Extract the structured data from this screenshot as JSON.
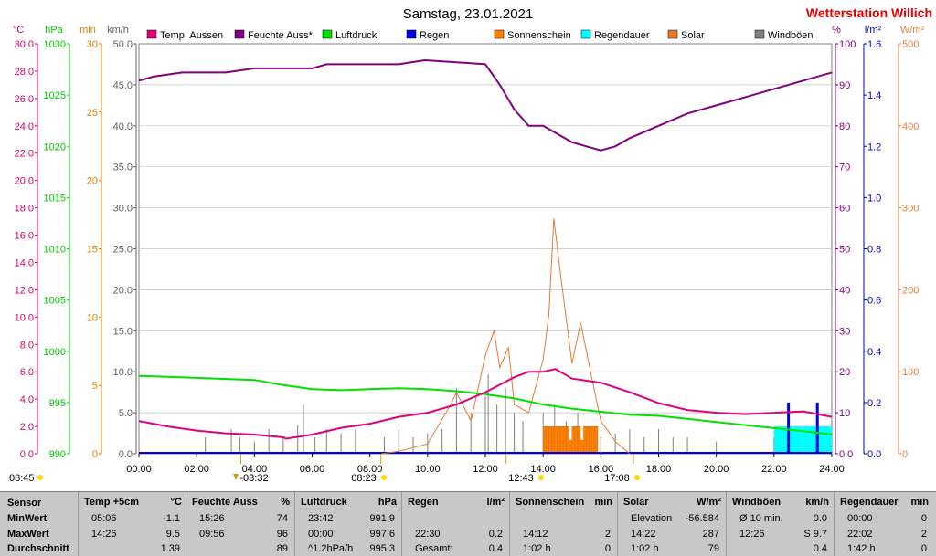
{
  "title": "Samstag, 23.01.2021",
  "station": "Wetterstation Willich",
  "axes_left": [
    {
      "unit": "°C",
      "color": "#d6006e",
      "ticks": [
        "30.0",
        "28.0",
        "26.0",
        "24.0",
        "22.0",
        "20.0",
        "18.0",
        "16.0",
        "14.0",
        "12.0",
        "10.0",
        "8.0",
        "6.0",
        "4.0",
        "2.0",
        "0.0"
      ]
    },
    {
      "unit": "hPa",
      "color": "#00c800",
      "ticks": [
        "1030",
        "1025",
        "1020",
        "1015",
        "1010",
        "1005",
        "1000",
        "995",
        "990"
      ]
    },
    {
      "unit": "min",
      "color": "#e08000",
      "ticks": [
        "30",
        "25",
        "20",
        "15",
        "10",
        "5",
        "0"
      ]
    },
    {
      "unit": "km/h",
      "color": "#606060",
      "ticks": [
        "50.0",
        "45.0",
        "40.0",
        "35.0",
        "30.0",
        "25.0",
        "20.0",
        "15.0",
        "10.0",
        "5.0",
        "0.0"
      ]
    }
  ],
  "axes_right": [
    {
      "unit": "%",
      "color": "#800080",
      "ticks": [
        "100",
        "90",
        "80",
        "70",
        "60",
        "50",
        "40",
        "30",
        "20",
        "10",
        "0.0"
      ]
    },
    {
      "unit": "l/m²",
      "color": "#0000c0",
      "ticks": [
        "1.6",
        "1.4",
        "1.2",
        "1.0",
        "0.8",
        "0.6",
        "0.4",
        "0.2",
        "0.0"
      ]
    },
    {
      "unit": "W/m²",
      "color": "#e08040",
      "ticks": [
        "500",
        "400",
        "300",
        "200",
        "100",
        "0"
      ]
    }
  ],
  "time_ticks": [
    "00:00",
    "02:00",
    "04:00",
    "06:00",
    "08:00",
    "10:00",
    "12:00",
    "14:00",
    "16:00",
    "18:00",
    "20:00",
    "22:00",
    "24:00"
  ],
  "markers": [
    {
      "label": "08:45",
      "symbol": "sunrise"
    },
    {
      "label": "-03:32",
      "symbol": "moon"
    },
    {
      "label": "08:23",
      "symbol": "sun"
    },
    {
      "label": "12:43",
      "symbol": "noon"
    },
    {
      "label": "17:08",
      "symbol": "sunset"
    }
  ],
  "legend": [
    {
      "label": "Temp. Aussen",
      "color": "#e0007a"
    },
    {
      "label": "Feuchte Auss*",
      "color": "#800080"
    },
    {
      "label": "Luftdruck",
      "color": "#00e000"
    },
    {
      "label": "Regen",
      "color": "#0000e0"
    },
    {
      "label": "Sonnenschein",
      "color": "#ff8000"
    },
    {
      "label": "Regendauer",
      "color": "#00ffff"
    },
    {
      "label": "Solar",
      "color": "#e87830"
    },
    {
      "label": "Windböen",
      "color": "#808080"
    }
  ],
  "chart_data": {
    "type": "line",
    "x_range": [
      "00:00",
      "24:00"
    ],
    "series": [
      {
        "name": "Temp. Aussen",
        "unit": "°C",
        "color": "#e0007a",
        "points": [
          [
            0,
            2.4
          ],
          [
            1,
            2.0
          ],
          [
            2,
            1.7
          ],
          [
            3,
            1.5
          ],
          [
            4,
            1.4
          ],
          [
            5,
            1.2
          ],
          [
            5.1,
            1.1
          ],
          [
            6,
            1.4
          ],
          [
            7,
            1.9
          ],
          [
            8,
            2.2
          ],
          [
            9,
            2.7
          ],
          [
            10,
            3.0
          ],
          [
            11,
            3.6
          ],
          [
            12,
            4.5
          ],
          [
            13,
            5.6
          ],
          [
            13.5,
            6.0
          ],
          [
            14,
            6.0
          ],
          [
            14.43,
            6.2
          ],
          [
            15,
            5.5
          ],
          [
            16,
            5.2
          ],
          [
            17,
            4.5
          ],
          [
            18,
            3.7
          ],
          [
            19,
            3.2
          ],
          [
            20,
            3.0
          ],
          [
            21,
            2.9
          ],
          [
            22,
            3.0
          ],
          [
            23,
            3.1
          ],
          [
            24,
            2.7
          ]
        ]
      },
      {
        "name": "Feuchte Auss*",
        "unit": "%",
        "color": "#800080",
        "points": [
          [
            0,
            91
          ],
          [
            0.5,
            92
          ],
          [
            1.5,
            93
          ],
          [
            3,
            93
          ],
          [
            4,
            94
          ],
          [
            6,
            94
          ],
          [
            6.5,
            95
          ],
          [
            9,
            95
          ],
          [
            9.9,
            96
          ],
          [
            11,
            95.5
          ],
          [
            12,
            95
          ],
          [
            12.5,
            90
          ],
          [
            13,
            84
          ],
          [
            13.5,
            80
          ],
          [
            14,
            80
          ],
          [
            15,
            76
          ],
          [
            15.5,
            75
          ],
          [
            16,
            74
          ],
          [
            16.5,
            75
          ],
          [
            17,
            77
          ],
          [
            18,
            80
          ],
          [
            19,
            83
          ],
          [
            20,
            85
          ],
          [
            21,
            87
          ],
          [
            22,
            89
          ],
          [
            23,
            91
          ],
          [
            24,
            93
          ]
        ]
      },
      {
        "name": "Luftdruck",
        "unit": "hPa",
        "color": "#00e000",
        "points": [
          [
            0,
            997.6
          ],
          [
            1,
            997.5
          ],
          [
            2,
            997.4
          ],
          [
            3,
            997.3
          ],
          [
            4,
            997.2
          ],
          [
            5,
            996.7
          ],
          [
            6,
            996.3
          ],
          [
            7,
            996.2
          ],
          [
            8,
            996.3
          ],
          [
            9,
            996.4
          ],
          [
            10,
            996.3
          ],
          [
            11,
            996.1
          ],
          [
            12,
            995.8
          ],
          [
            13,
            995.4
          ],
          [
            14,
            994.8
          ],
          [
            15,
            994.4
          ],
          [
            16,
            994.1
          ],
          [
            17,
            993.8
          ],
          [
            18,
            993.7
          ],
          [
            19,
            993.4
          ],
          [
            20,
            993.1
          ],
          [
            21,
            992.8
          ],
          [
            22,
            992.5
          ],
          [
            23,
            992.2
          ],
          [
            24,
            991.9
          ]
        ]
      },
      {
        "name": "Solar",
        "unit": "W/m²",
        "color": "#e87830",
        "points": [
          [
            8.4,
            0
          ],
          [
            9,
            3
          ],
          [
            10,
            12
          ],
          [
            10.8,
            60
          ],
          [
            11,
            75
          ],
          [
            11.5,
            40
          ],
          [
            12,
            120
          ],
          [
            12.3,
            150
          ],
          [
            12.5,
            105
          ],
          [
            12.8,
            130
          ],
          [
            13,
            60
          ],
          [
            13.5,
            50
          ],
          [
            14,
            115
          ],
          [
            14.2,
            170
          ],
          [
            14.37,
            287
          ],
          [
            14.6,
            220
          ],
          [
            15,
            110
          ],
          [
            15.3,
            160
          ],
          [
            15.7,
            90
          ],
          [
            16,
            40
          ],
          [
            16.5,
            15
          ],
          [
            17,
            0
          ]
        ]
      },
      {
        "name": "Windböen",
        "unit": "km/h",
        "color": "#808080",
        "bars": [
          [
            2.3,
            2
          ],
          [
            3.2,
            3
          ],
          [
            3.5,
            2
          ],
          [
            4.0,
            1.5
          ],
          [
            4.5,
            3
          ],
          [
            5.0,
            2
          ],
          [
            5.5,
            3.5
          ],
          [
            5.7,
            6
          ],
          [
            6.1,
            2
          ],
          [
            6.5,
            3
          ],
          [
            7.0,
            2.5
          ],
          [
            7.5,
            3
          ],
          [
            8.5,
            2
          ],
          [
            9.0,
            3
          ],
          [
            9.5,
            2
          ],
          [
            10.0,
            2.5
          ],
          [
            10.5,
            3
          ],
          [
            11.0,
            8
          ],
          [
            11.5,
            5
          ],
          [
            12.0,
            7
          ],
          [
            12.1,
            9.7
          ],
          [
            12.4,
            6
          ],
          [
            12.7,
            8
          ],
          [
            13.0,
            5
          ],
          [
            13.3,
            4
          ],
          [
            14.0,
            5
          ],
          [
            14.4,
            6
          ],
          [
            14.8,
            4
          ],
          [
            15.2,
            5
          ],
          [
            15.6,
            3
          ],
          [
            16.0,
            2
          ],
          [
            16.5,
            2.5
          ],
          [
            17.0,
            3
          ],
          [
            17.5,
            2
          ],
          [
            18.0,
            3
          ],
          [
            18.5,
            2
          ],
          [
            19.0,
            2
          ],
          [
            20.0,
            1.5
          ],
          [
            22.0,
            2
          ]
        ]
      },
      {
        "name": "Sonnenschein",
        "unit": "min",
        "color": "#ff8000",
        "bars": [
          [
            14.0,
            2
          ],
          [
            14.1,
            2
          ],
          [
            14.2,
            2
          ],
          [
            14.3,
            2
          ],
          [
            14.4,
            2
          ],
          [
            14.5,
            2
          ],
          [
            14.6,
            2
          ],
          [
            14.7,
            2
          ],
          [
            14.8,
            2
          ],
          [
            14.9,
            1
          ],
          [
            15.0,
            2
          ],
          [
            15.1,
            2
          ],
          [
            15.2,
            2
          ],
          [
            15.3,
            1
          ],
          [
            15.4,
            2
          ],
          [
            15.5,
            2
          ],
          [
            15.6,
            2
          ],
          [
            15.7,
            2
          ],
          [
            15.8,
            2
          ]
        ]
      },
      {
        "name": "Regen",
        "unit": "l/m²",
        "color": "#0000e0",
        "bars": [
          [
            22.5,
            0.2
          ],
          [
            23.5,
            0.2
          ]
        ]
      },
      {
        "name": "Regendauer",
        "unit": "min",
        "color": "#00ffff",
        "bars": [
          [
            22,
            2
          ],
          [
            23,
            2
          ],
          [
            24,
            2
          ]
        ]
      }
    ]
  },
  "stats": {
    "row_labels": [
      "Sensor",
      "MinWert",
      "MaxWert",
      "Durchschnitt"
    ],
    "columns": [
      {
        "name": "Temp +5cm",
        "unit": "°C",
        "rows": [
          [
            "05:06",
            "-1.1"
          ],
          [
            "14:26",
            "9.5"
          ],
          [
            "",
            "1.39"
          ]
        ]
      },
      {
        "name": "Feuchte Auss",
        "unit": "%",
        "rows": [
          [
            "15:26",
            "74"
          ],
          [
            "09:56",
            "96"
          ],
          [
            "",
            "89"
          ]
        ]
      },
      {
        "name": "Luftdruck",
        "unit": "hPa",
        "rows": [
          [
            "23:42",
            "991.9"
          ],
          [
            "00:00",
            "997.6"
          ],
          [
            "^1.2hPa/h",
            "995.3"
          ]
        ]
      },
      {
        "name": "Regen",
        "unit": "l/m²",
        "rows": [
          [
            "",
            ""
          ],
          [
            "22:30",
            "0.2"
          ],
          [
            "Gesamt:",
            "0.4"
          ]
        ]
      },
      {
        "name": "Sonnenschein",
        "unit": "min",
        "rows": [
          [
            "",
            ""
          ],
          [
            "14:12",
            "2"
          ],
          [
            "1:02 h",
            "0"
          ]
        ]
      },
      {
        "name": "Solar",
        "unit": "W/m²",
        "rows": [
          [
            "Elevation",
            "-56.584"
          ],
          [
            "14:22",
            "287"
          ],
          [
            "1:02 h",
            "79"
          ]
        ]
      },
      {
        "name": "Windböen",
        "unit": "km/h",
        "rows": [
          [
            "Ø 10 min.",
            "0.0"
          ],
          [
            "12:26",
            "S 9.7"
          ],
          [
            "",
            "0.4"
          ]
        ]
      },
      {
        "name": "Regendauer",
        "unit": "min",
        "rows": [
          [
            "00:00",
            "0"
          ],
          [
            "22:02",
            "2"
          ],
          [
            "1:42 h",
            "0"
          ]
        ]
      }
    ]
  }
}
